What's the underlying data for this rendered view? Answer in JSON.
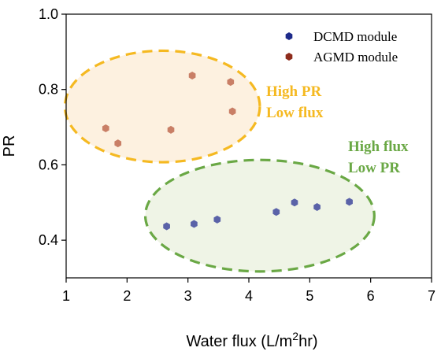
{
  "chart_data": {
    "type": "scatter",
    "xlabel": "Water flux (L/m",
    "xlabel_sup": "2",
    "xlabel_tail": "hr)",
    "ylabel": "PR",
    "xlim": [
      1,
      7
    ],
    "ylim": [
      0.3,
      1.0
    ],
    "x_ticks": [
      "1",
      "2",
      "3",
      "4",
      "5",
      "6",
      "7"
    ],
    "y_ticks": [
      "0.4",
      "0.6",
      "0.8",
      "1.0"
    ],
    "legend_position": "top-right",
    "series": [
      {
        "name": "DCMD module",
        "marker_color": "#5a62a8",
        "legend_color": "#1d2a8a",
        "points": [
          [
            2.65,
            0.437
          ],
          [
            3.1,
            0.443
          ],
          [
            3.48,
            0.455
          ],
          [
            4.45,
            0.475
          ],
          [
            4.75,
            0.5
          ],
          [
            5.12,
            0.488
          ],
          [
            5.65,
            0.502
          ]
        ]
      },
      {
        "name": "AGMD module",
        "marker_color": "#c97f66",
        "legend_color": "#8e2b1c",
        "points": [
          [
            1.65,
            0.697
          ],
          [
            1.85,
            0.657
          ],
          [
            2.72,
            0.693
          ],
          [
            3.07,
            0.837
          ],
          [
            3.7,
            0.82
          ],
          [
            3.73,
            0.742
          ]
        ]
      }
    ],
    "regions": [
      {
        "label_lines": [
          "High PR",
          "Low flux"
        ],
        "color": "#f5b921",
        "fill": "#fdf1e0",
        "center": [
          2.58,
          0.755
        ],
        "radius": [
          1.6,
          0.148
        ]
      },
      {
        "label_lines": [
          "High flux",
          "Low PR"
        ],
        "color": "#6aa845",
        "fill": "#eff4e6",
        "center": [
          4.18,
          0.465
        ],
        "radius": [
          1.88,
          0.148
        ]
      }
    ]
  }
}
